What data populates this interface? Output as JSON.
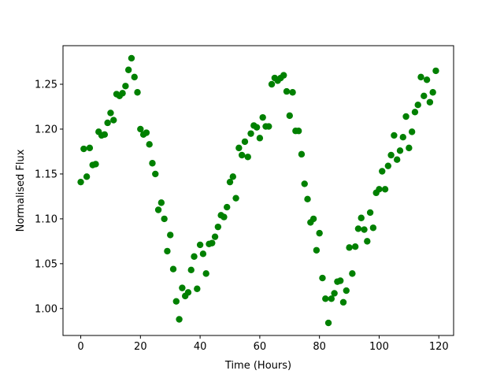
{
  "chart_data": {
    "type": "scatter",
    "x_label": "Time (Hours)",
    "y_label": "Normalised Flux",
    "color": "#008000",
    "xlim": [
      -5.95,
      124.95
    ],
    "ylim": [
      0.97,
      1.293
    ],
    "xticks": [
      0,
      20,
      40,
      60,
      80,
      100,
      120
    ],
    "yticks": [
      {
        "value": 1,
        "label": "1.00"
      },
      {
        "value": 1.05,
        "label": "1.05"
      },
      {
        "value": 1.1,
        "label": "1.10"
      },
      {
        "value": 1.15,
        "label": "1.15"
      },
      {
        "value": 1.2,
        "label": "1.20"
      },
      {
        "value": 1.25,
        "label": "1.25"
      }
    ],
    "x": [
      0,
      1,
      2,
      3,
      4,
      5,
      6,
      7,
      8,
      9,
      10,
      11,
      12,
      13,
      14,
      15,
      16,
      17,
      18,
      19,
      20,
      21,
      22,
      23,
      24,
      25,
      26,
      27,
      28,
      29,
      30,
      31,
      32,
      33,
      34,
      35,
      36,
      37,
      38,
      39,
      40,
      41,
      42,
      43,
      44,
      45,
      46,
      47,
      48,
      49,
      50,
      51,
      52,
      53,
      54,
      55,
      56,
      57,
      58,
      59,
      60,
      61,
      62,
      63,
      64,
      65,
      66,
      67,
      68,
      69,
      70,
      71,
      72,
      73,
      74,
      75,
      76,
      77,
      78,
      79,
      80,
      81,
      82,
      83,
      84,
      85,
      86,
      87,
      88,
      89,
      90,
      91,
      92,
      93,
      94,
      95,
      96,
      97,
      98,
      99,
      100,
      101,
      102,
      103,
      104,
      105,
      106,
      107,
      108,
      109,
      110,
      111,
      112,
      113,
      114,
      115,
      116,
      117,
      118,
      119
    ],
    "y": [
      1.141,
      1.178,
      1.147,
      1.179,
      1.16,
      1.161,
      1.197,
      1.193,
      1.194,
      1.207,
      1.218,
      1.21,
      1.239,
      1.237,
      1.24,
      1.248,
      1.266,
      1.279,
      1.258,
      1.241,
      1.2,
      1.194,
      1.196,
      1.183,
      1.162,
      1.15,
      1.11,
      1.118,
      1.1,
      1.064,
      1.082,
      1.044,
      1.008,
      0.988,
      1.023,
      1.014,
      1.018,
      1.043,
      1.058,
      1.022,
      1.071,
      1.061,
      1.039,
      1.072,
      1.073,
      1.08,
      1.091,
      1.104,
      1.102,
      1.113,
      1.141,
      1.147,
      1.123,
      1.179,
      1.171,
      1.186,
      1.169,
      1.195,
      1.204,
      1.202,
      1.19,
      1.213,
      1.203,
      1.203,
      1.25,
      1.257,
      1.254,
      1.257,
      1.26,
      1.242,
      1.215,
      1.241,
      1.198,
      1.198,
      1.172,
      1.139,
      1.122,
      1.096,
      1.1,
      1.065,
      1.084,
      1.034,
      1.011,
      0.984,
      1.011,
      1.017,
      1.03,
      1.031,
      1.007,
      1.02,
      1.068,
      1.039,
      1.069,
      1.089,
      1.101,
      1.088,
      1.075,
      1.107,
      1.09,
      1.129,
      1.133,
      1.153,
      1.133,
      1.159,
      1.171,
      1.193,
      1.166,
      1.176,
      1.191,
      1.214,
      1.179,
      1.197,
      1.219,
      1.227,
      1.258,
      1.237,
      1.255,
      1.23,
      1.241,
      1.265
    ]
  }
}
